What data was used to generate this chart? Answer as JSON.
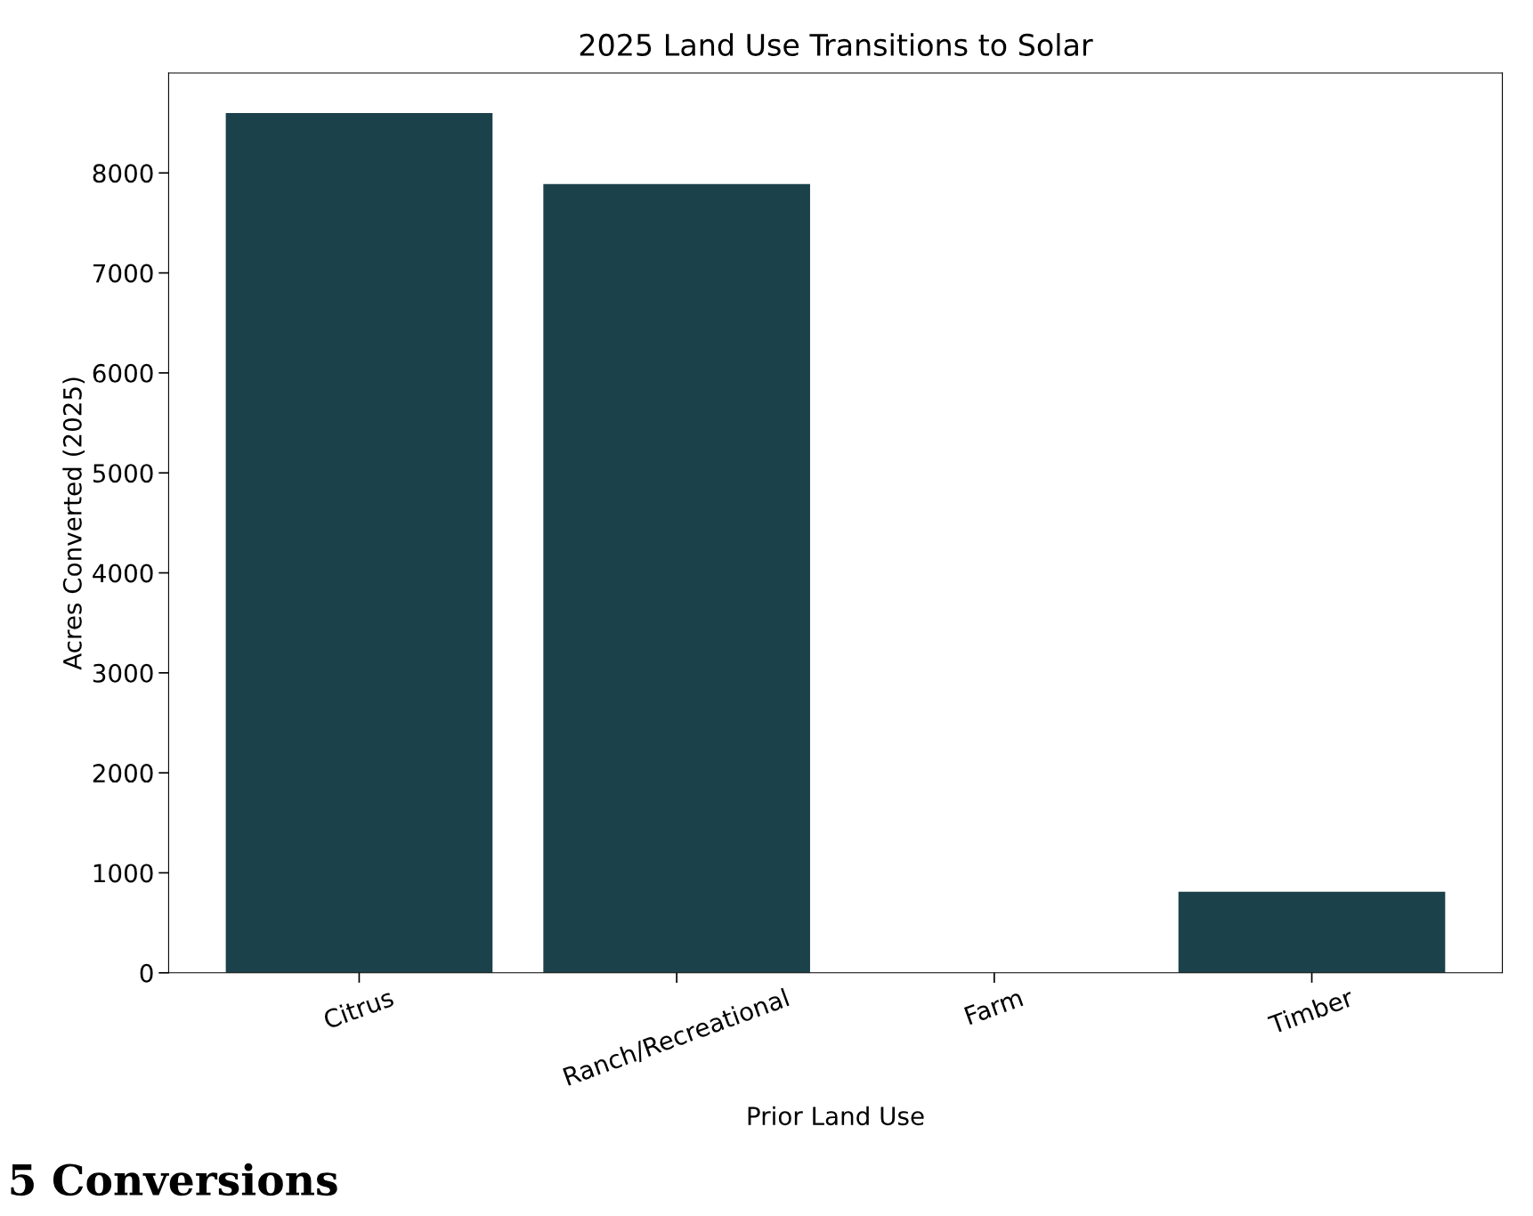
{
  "chart_data": {
    "type": "bar",
    "title": "2025 Land Use Transitions to Solar",
    "xlabel": "Prior Land Use",
    "ylabel": "Acres Converted (2025)",
    "categories": [
      "Citrus",
      "Ranch/Recreational",
      "Farm",
      "Timber"
    ],
    "values": [
      8600,
      7890,
      0,
      810
    ],
    "color": "#1b414b",
    "ylim": [
      0,
      9000
    ],
    "yticks": [
      0,
      1000,
      2000,
      3000,
      4000,
      5000,
      6000,
      7000,
      8000
    ],
    "annotations": [
      "5 Conversions"
    ]
  }
}
